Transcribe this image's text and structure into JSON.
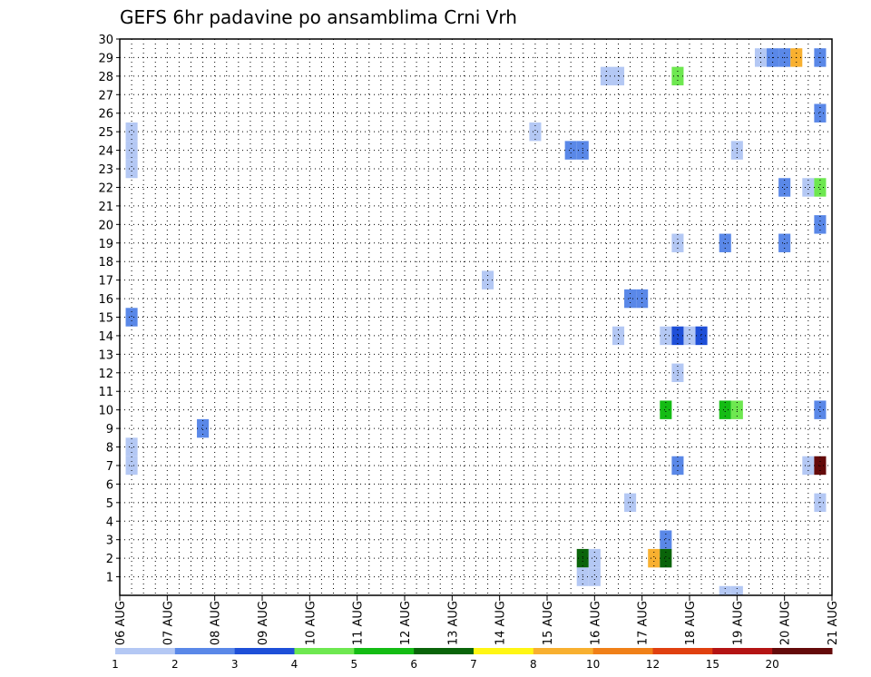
{
  "chart_data": {
    "type": "heatmap",
    "title": "GEFS 6hr padavine po ansamblima Crni Vrh",
    "xlabel": "",
    "ylabel": "",
    "x_ticks": [
      "06 AUG",
      "07 AUG",
      "08 AUG",
      "09 AUG",
      "10 AUG",
      "11 AUG",
      "12 AUG",
      "13 AUG",
      "14 AUG",
      "15 AUG",
      "16 AUG",
      "17 AUG",
      "18 AUG",
      "19 AUG",
      "20 AUG",
      "21 AUG"
    ],
    "y_ticks": [
      "1",
      "2",
      "3",
      "4",
      "5",
      "6",
      "7",
      "8",
      "9",
      "10",
      "11",
      "12",
      "13",
      "14",
      "15",
      "16",
      "17",
      "18",
      "19",
      "20",
      "21",
      "22",
      "23",
      "24",
      "25",
      "26",
      "27",
      "28",
      "29",
      "30"
    ],
    "xlim_days": [
      0,
      15
    ],
    "ylim": [
      0,
      30
    ],
    "grid": true,
    "step_hours": 6,
    "colorbar": {
      "labels": [
        "1",
        "2",
        "3",
        "4",
        "5",
        "6",
        "7",
        "8",
        "10",
        "12",
        "15",
        "20"
      ],
      "colors": [
        "#b4c8f4",
        "#5a88e8",
        "#1e4fd8",
        "#6ee850",
        "#14bc14",
        "#0a640a",
        "#fff614",
        "#f8b030",
        "#f08018",
        "#e04010",
        "#b41414",
        "#640a0a"
      ]
    },
    "cells": [
      {
        "t": "06 AUG 06z",
        "m": 23,
        "v": 1.5
      },
      {
        "t": "06 AUG 06z",
        "m": 24,
        "v": 1.5
      },
      {
        "t": "06 AUG 06z",
        "m": 25,
        "v": 1.5
      },
      {
        "t": "06 AUG 06z",
        "m": 15,
        "v": 2.5
      },
      {
        "t": "06 AUG 06z",
        "m": 7,
        "v": 1.5
      },
      {
        "t": "06 AUG 06z",
        "m": 8,
        "v": 1.5
      },
      {
        "t": "07 AUG 18z",
        "m": 9,
        "v": 2.5
      },
      {
        "t": "13 AUG 18z",
        "m": 17,
        "v": 1.5
      },
      {
        "t": "14 AUG 18z",
        "m": 25,
        "v": 1.5
      },
      {
        "t": "15 AUG 12z",
        "m": 24,
        "v": 2.5
      },
      {
        "t": "15 AUG 18z",
        "m": 24,
        "v": 2.5
      },
      {
        "t": "15 AUG 18z",
        "m": 2,
        "v": 6.5
      },
      {
        "t": "16 AUG 00z",
        "m": 2,
        "v": 1.5
      },
      {
        "t": "15 AUG 18z",
        "m": 1,
        "v": 1.5
      },
      {
        "t": "16 AUG 00z",
        "m": 1,
        "v": 1.5
      },
      {
        "t": "16 AUG 06z",
        "m": 28,
        "v": 1.5
      },
      {
        "t": "16 AUG 12z",
        "m": 28,
        "v": 1.5
      },
      {
        "t": "16 AUG 12z",
        "m": 14,
        "v": 1.5
      },
      {
        "t": "16 AUG 18z",
        "m": 16,
        "v": 2.5
      },
      {
        "t": "17 AUG 00z",
        "m": 16,
        "v": 2.5
      },
      {
        "t": "16 AUG 18z",
        "m": 5,
        "v": 1.5
      },
      {
        "t": "17 AUG 06z",
        "m": 2,
        "v": 9
      },
      {
        "t": "17 AUG 12z",
        "m": 14,
        "v": 1.5
      },
      {
        "t": "17 AUG 18z",
        "m": 14,
        "v": 3.5
      },
      {
        "t": "18 AUG 00z",
        "m": 14,
        "v": 1.5
      },
      {
        "t": "18 AUG 06z",
        "m": 14,
        "v": 3.5
      },
      {
        "t": "17 AUG 12z",
        "m": 10,
        "v": 5.5
      },
      {
        "t": "17 AUG 12z",
        "m": 3,
        "v": 2.5
      },
      {
        "t": "17 AUG 12z",
        "m": 2,
        "v": 6.5
      },
      {
        "t": "17 AUG 18z",
        "m": 28,
        "v": 4.5
      },
      {
        "t": "17 AUG 18z",
        "m": 19,
        "v": 1.5
      },
      {
        "t": "17 AUG 18z",
        "m": 12,
        "v": 1.5
      },
      {
        "t": "17 AUG 18z",
        "m": 7,
        "v": 2.5
      },
      {
        "t": "18 AUG 18z",
        "m": 19,
        "v": 2.5
      },
      {
        "t": "18 AUG 18z",
        "m": 10,
        "v": 5.5
      },
      {
        "t": "19 AUG 00z",
        "m": 10,
        "v": 4.5
      },
      {
        "t": "19 AUG 00z",
        "m": 24,
        "v": 1.5
      },
      {
        "t": "19 AUG 00z",
        "m": 0,
        "v": 1.5
      },
      {
        "t": "18 AUG 18z",
        "m": 0,
        "v": 1.5
      },
      {
        "t": "19 AUG 12z",
        "m": 29,
        "v": 1.5
      },
      {
        "t": "19 AUG 18z",
        "m": 29,
        "v": 2.5
      },
      {
        "t": "20 AUG 00z",
        "m": 29,
        "v": 2.5
      },
      {
        "t": "20 AUG 06z",
        "m": 29,
        "v": 9
      },
      {
        "t": "20 AUG 00z",
        "m": 22,
        "v": 2.5
      },
      {
        "t": "20 AUG 00z",
        "m": 19,
        "v": 2.5
      },
      {
        "t": "20 AUG 12z",
        "m": 22,
        "v": 1.5
      },
      {
        "t": "20 AUG 12z",
        "m": 7,
        "v": 1.5
      },
      {
        "t": "20 AUG 18z",
        "m": 29,
        "v": 2.5
      },
      {
        "t": "20 AUG 18z",
        "m": 26,
        "v": 2.5
      },
      {
        "t": "20 AUG 18z",
        "m": 22,
        "v": 4.5
      },
      {
        "t": "20 AUG 18z",
        "m": 20,
        "v": 2.5
      },
      {
        "t": "20 AUG 18z",
        "m": 10,
        "v": 2.5
      },
      {
        "t": "20 AUG 18z",
        "m": 7,
        "v": 25
      },
      {
        "t": "20 AUG 18z",
        "m": 5,
        "v": 1.5
      }
    ]
  }
}
